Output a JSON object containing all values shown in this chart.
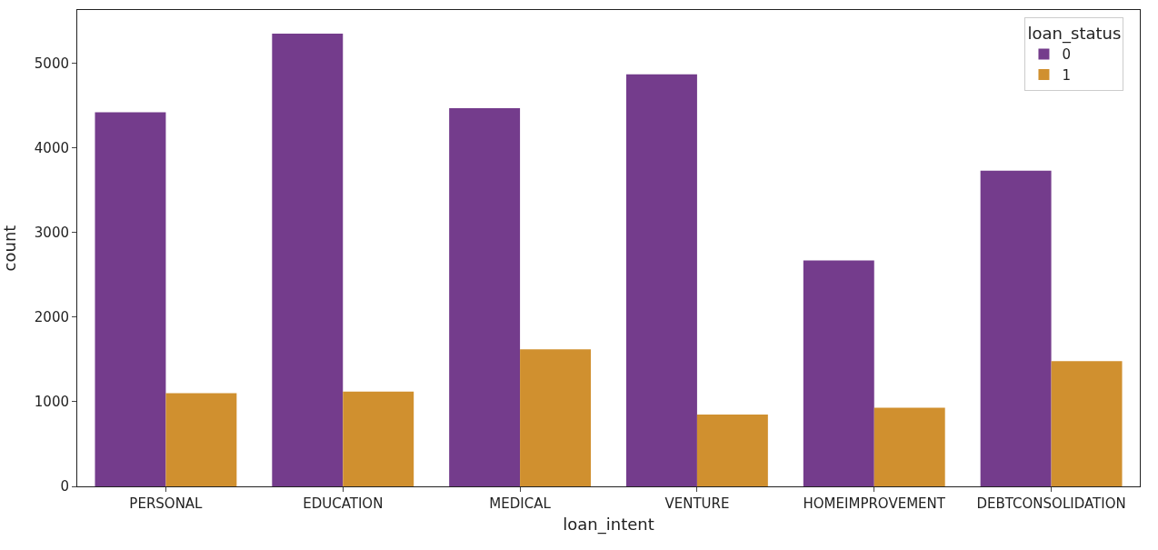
{
  "chart_data": {
    "type": "bar",
    "xlabel": "loan_intent",
    "ylabel": "count",
    "legend_title": "loan_status",
    "categories": [
      "PERSONAL",
      "EDUCATION",
      "MEDICAL",
      "VENTURE",
      "HOMEIMPROVEMENT",
      "DEBTCONSOLIDATION"
    ],
    "series": [
      {
        "name": "0",
        "color": "#743c8c",
        "values": [
          4420,
          5350,
          4470,
          4870,
          2670,
          3730
        ]
      },
      {
        "name": "1",
        "color": "#d0902f",
        "values": [
          1100,
          1120,
          1620,
          850,
          930,
          1480
        ]
      }
    ],
    "ylim": [
      0,
      5630
    ],
    "yticks": [
      0,
      1000,
      2000,
      3000,
      4000,
      5000
    ],
    "legend": "top right"
  }
}
